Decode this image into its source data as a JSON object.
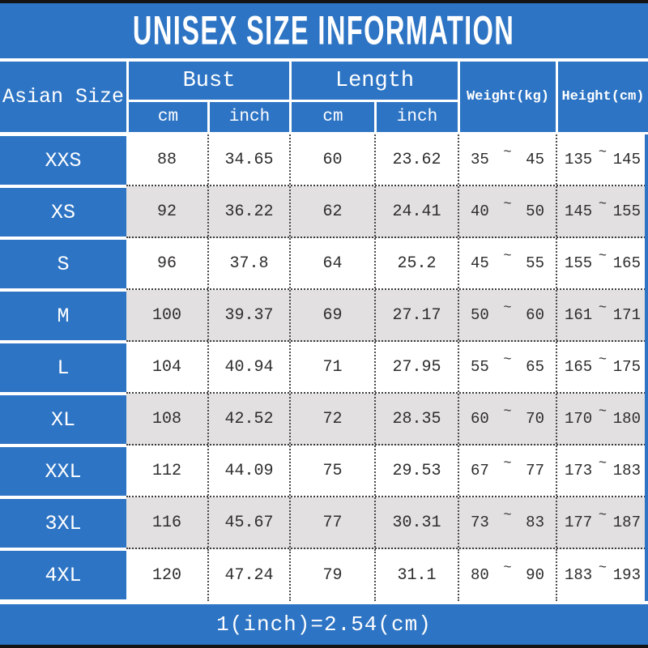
{
  "title": "UNISEX SIZE INFORMATION",
  "footer_note": "1(inch)=2.54(cm)",
  "tilde": "~",
  "colors": {
    "blue": "#2d74c4",
    "row_alt_gray": "#e2e0e1",
    "edge_bar_black": "#141414",
    "text_dark": "#2e2c2d",
    "text_white": "#ffffff"
  },
  "header": {
    "asian_size": "Asian Size",
    "bust": "Bust",
    "length": "Length",
    "weight": "Weight(kg)",
    "height": "Height(cm)",
    "cm": "cm",
    "inch": "inch"
  },
  "table": {
    "rows": [
      {
        "size": "XXS",
        "bust_cm": "88",
        "bust_inch": "34.65",
        "length_cm": "60",
        "length_inch": "23.62",
        "weight_min": "35",
        "weight_max": "45",
        "height_min": "135",
        "height_max": "145"
      },
      {
        "size": "XS",
        "bust_cm": "92",
        "bust_inch": "36.22",
        "length_cm": "62",
        "length_inch": "24.41",
        "weight_min": "40",
        "weight_max": "50",
        "height_min": "145",
        "height_max": "155"
      },
      {
        "size": "S",
        "bust_cm": "96",
        "bust_inch": "37.8",
        "length_cm": "64",
        "length_inch": "25.2",
        "weight_min": "45",
        "weight_max": "55",
        "height_min": "155",
        "height_max": "165"
      },
      {
        "size": "M",
        "bust_cm": "100",
        "bust_inch": "39.37",
        "length_cm": "69",
        "length_inch": "27.17",
        "weight_min": "50",
        "weight_max": "60",
        "height_min": "161",
        "height_max": "171"
      },
      {
        "size": "L",
        "bust_cm": "104",
        "bust_inch": "40.94",
        "length_cm": "71",
        "length_inch": "27.95",
        "weight_min": "55",
        "weight_max": "65",
        "height_min": "165",
        "height_max": "175"
      },
      {
        "size": "XL",
        "bust_cm": "108",
        "bust_inch": "42.52",
        "length_cm": "72",
        "length_inch": "28.35",
        "weight_min": "60",
        "weight_max": "70",
        "height_min": "170",
        "height_max": "180"
      },
      {
        "size": "XXL",
        "bust_cm": "112",
        "bust_inch": "44.09",
        "length_cm": "75",
        "length_inch": "29.53",
        "weight_min": "67",
        "weight_max": "77",
        "height_min": "173",
        "height_max": "183"
      },
      {
        "size": "3XL",
        "bust_cm": "116",
        "bust_inch": "45.67",
        "length_cm": "77",
        "length_inch": "30.31",
        "weight_min": "73",
        "weight_max": "83",
        "height_min": "177",
        "height_max": "187"
      },
      {
        "size": "4XL",
        "bust_cm": "120",
        "bust_inch": "47.24",
        "length_cm": "79",
        "length_inch": "31.1",
        "weight_min": "80",
        "weight_max": "90",
        "height_min": "183",
        "height_max": "193"
      }
    ]
  },
  "chart_data": {
    "type": "table",
    "title": "UNISEX SIZE INFORMATION",
    "columns": [
      "Asian Size",
      "Bust cm",
      "Bust inch",
      "Length cm",
      "Length inch",
      "Weight(kg)",
      "Height(cm)"
    ],
    "rows": [
      [
        "XXS",
        88,
        34.65,
        60,
        23.62,
        "35~45",
        "135~145"
      ],
      [
        "XS",
        92,
        36.22,
        62,
        24.41,
        "40~50",
        "145~155"
      ],
      [
        "S",
        96,
        37.8,
        64,
        25.2,
        "45~55",
        "155~165"
      ],
      [
        "M",
        100,
        39.37,
        69,
        27.17,
        "50~60",
        "161~171"
      ],
      [
        "L",
        104,
        40.94,
        71,
        27.95,
        "55~65",
        "165~175"
      ],
      [
        "XL",
        108,
        42.52,
        72,
        28.35,
        "60~70",
        "170~180"
      ],
      [
        "XXL",
        112,
        44.09,
        75,
        29.53,
        "67~77",
        "173~183"
      ],
      [
        "3XL",
        116,
        45.67,
        77,
        30.31,
        "73~83",
        "177~187"
      ],
      [
        "4XL",
        120,
        47.24,
        79,
        31.1,
        "80~90",
        "183~193"
      ]
    ],
    "footnote": "1(inch)=2.54(cm)"
  }
}
